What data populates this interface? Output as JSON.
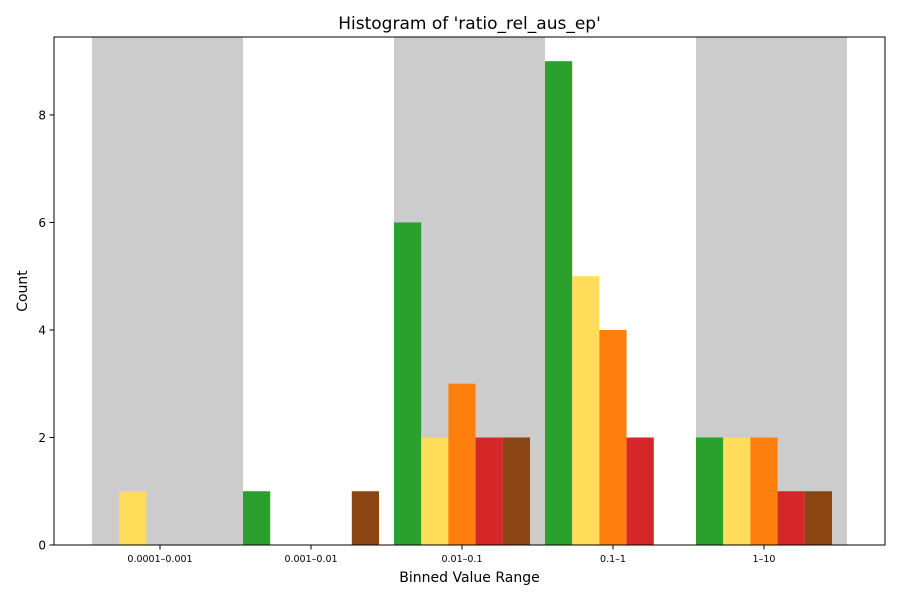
{
  "chart_data": {
    "type": "bar",
    "title": "Histogram of 'ratio_rel_aus_ep'",
    "xlabel": "Binned Value Range",
    "ylabel": "Count",
    "categories": [
      "0.0001–0.001",
      "0.001–0.01",
      "0.01–0.1",
      "0.1–1",
      "1–10"
    ],
    "ylim": [
      0,
      9.45
    ],
    "yticks": [
      0,
      2,
      4,
      6,
      8
    ],
    "grid": false,
    "legend": "none",
    "band_background": {
      "color": "#cccccc",
      "shaded_categories": [
        0,
        2,
        4
      ]
    },
    "series": [
      {
        "color": "#2ca02c",
        "values": [
          0,
          1,
          6,
          9,
          2
        ]
      },
      {
        "color": "#ffdc5a",
        "values": [
          1,
          0,
          2,
          5,
          2
        ]
      },
      {
        "color": "#ff7f0e",
        "values": [
          0,
          0,
          3,
          4,
          2
        ]
      },
      {
        "color": "#d62728",
        "values": [
          0,
          0,
          2,
          2,
          1
        ]
      },
      {
        "color": "#8b4513",
        "values": [
          0,
          1,
          2,
          0,
          1
        ]
      }
    ]
  }
}
